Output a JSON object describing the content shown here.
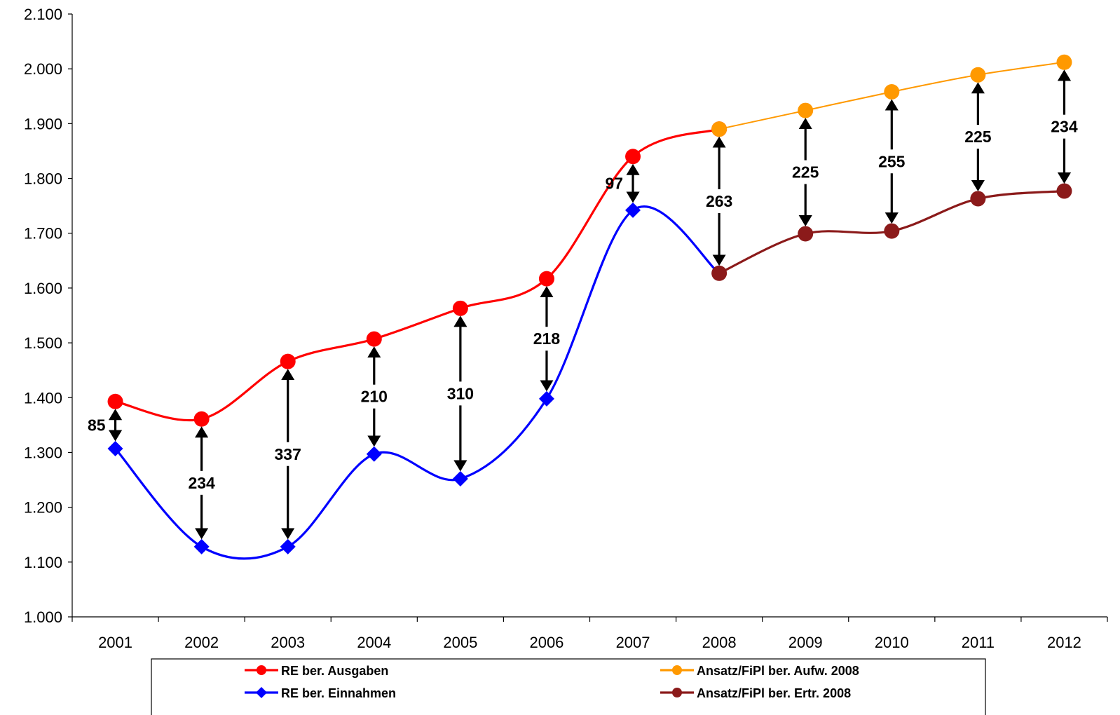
{
  "chart_data": {
    "type": "line",
    "categories": [
      "2001",
      "2002",
      "2003",
      "2004",
      "2005",
      "2006",
      "2007",
      "2008",
      "2009",
      "2010",
      "2011",
      "2012"
    ],
    "ylim": [
      1000,
      2100
    ],
    "yticks": [
      1000,
      1100,
      1200,
      1300,
      1400,
      1500,
      1600,
      1700,
      1800,
      1900,
      2000,
      2100
    ],
    "ytick_labels": [
      "1.000",
      "1.100",
      "1.200",
      "1.300",
      "1.400",
      "1.500",
      "1.600",
      "1.700",
      "1.800",
      "1.900",
      "2.000",
      "2.100"
    ],
    "grid": false,
    "legend_position": "bottom",
    "series": [
      {
        "name": "RE  ber. Ausgaben",
        "color": "#ff0000",
        "marker": "circle",
        "smooth": true,
        "x": [
          "2001",
          "2002",
          "2003",
          "2004",
          "2005",
          "2006",
          "2007",
          "2008"
        ],
        "values": [
          1393,
          1361,
          1466,
          1507,
          1563,
          1617,
          1840,
          1890
        ]
      },
      {
        "name": "RE  ber. Einnahmen",
        "color": "#0000ff",
        "marker": "diamond",
        "smooth": true,
        "x": [
          "2001",
          "2002",
          "2003",
          "2004",
          "2005",
          "2006",
          "2007",
          "2008"
        ],
        "values": [
          1307,
          1128,
          1128,
          1297,
          1252,
          1398,
          1742,
          1627
        ]
      },
      {
        "name": "Ansatz/FiPl ber. Aufw. 2008",
        "color": "#ff9900",
        "marker": "circle",
        "smooth": true,
        "x": [
          "2008",
          "2009",
          "2010",
          "2011",
          "2012"
        ],
        "values": [
          1890,
          1924,
          1958,
          1989,
          2012
        ]
      },
      {
        "name": "Ansatz/FiPl ber. Ertr. 2008",
        "color": "#8b1a1a",
        "marker": "circle",
        "smooth": true,
        "x": [
          "2008",
          "2009",
          "2010",
          "2011",
          "2012"
        ],
        "values": [
          1627,
          1699,
          1704,
          1763,
          1777
        ]
      }
    ],
    "annotations": [
      {
        "x": "2001",
        "text": "85",
        "top": 1393,
        "bottom": 1307
      },
      {
        "x": "2002",
        "text": "234",
        "top": 1361,
        "bottom": 1128
      },
      {
        "x": "2003",
        "text": "337",
        "top": 1466,
        "bottom": 1128
      },
      {
        "x": "2004",
        "text": "210",
        "top": 1507,
        "bottom": 1297
      },
      {
        "x": "2005",
        "text": "310",
        "top": 1563,
        "bottom": 1252
      },
      {
        "x": "2006",
        "text": "218",
        "top": 1617,
        "bottom": 1398
      },
      {
        "x": "2007",
        "text": "97",
        "top": 1840,
        "bottom": 1742
      },
      {
        "x": "2008",
        "text": "263",
        "top": 1890,
        "bottom": 1627
      },
      {
        "x": "2009",
        "text": "225",
        "top": 1924,
        "bottom": 1699
      },
      {
        "x": "2010",
        "text": "255",
        "top": 1958,
        "bottom": 1704
      },
      {
        "x": "2011",
        "text": "225",
        "top": 1989,
        "bottom": 1763
      },
      {
        "x": "2012",
        "text": "234",
        "top": 2012,
        "bottom": 1777
      }
    ]
  }
}
